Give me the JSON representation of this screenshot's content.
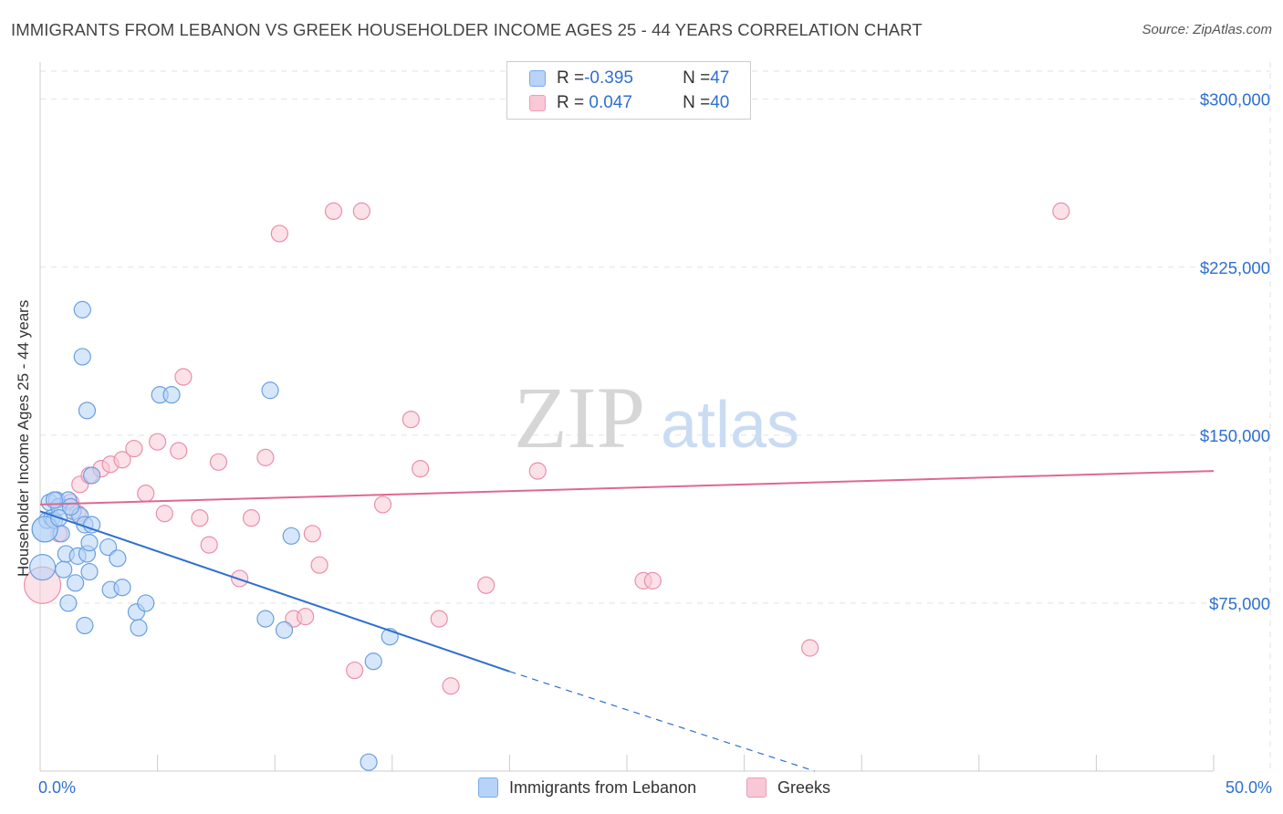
{
  "title": "IMMIGRANTS FROM LEBANON VS GREEK HOUSEHOLDER INCOME AGES 25 - 44 YEARS CORRELATION CHART",
  "source": "Source: ZipAtlas.com",
  "watermark": {
    "zip": "ZIP",
    "atlas": "atlas"
  },
  "legend": {
    "rows": [
      {
        "r_label": "R = ",
        "r_value": "-0.395",
        "n_label": "N = ",
        "n_value": "47"
      },
      {
        "r_label": "R = ",
        "r_value": " 0.047",
        "n_label": "N = ",
        "n_value": "40"
      }
    ]
  },
  "x_min_label": "0.0%",
  "x_max_label": "50.0%",
  "colors": {
    "blue": "#6a9fe0",
    "blue_fill": "#b7d3f7",
    "pink": "#ea8fab",
    "pink_fill": "#f8c8d6",
    "blue_line": "#2f6fcf",
    "pink_line": "#e06890",
    "axis_text": "#2f6fcf"
  },
  "chart_data": {
    "type": "scatter",
    "title": "IMMIGRANTS FROM LEBANON VS GREEK HOUSEHOLDER INCOME AGES 25 - 44 YEARS CORRELATION CHART",
    "xlabel": "",
    "ylabel": "Householder Income Ages 25 - 44 years",
    "xlim": [
      0,
      50
    ],
    "ylim": [
      0,
      312500
    ],
    "y_ticks": [
      75000,
      150000,
      225000,
      300000
    ],
    "y_tick_labels": [
      "$75,000",
      "$150,000",
      "$225,000",
      "$300,000"
    ],
    "grid": true,
    "legend_position": "bottom",
    "series": [
      {
        "name": "Immigrants from Lebanon",
        "R": -0.395,
        "N": 47,
        "trend": {
          "x0": 0,
          "y0": 116000,
          "x1": 20,
          "y1": 44500,
          "dash_to_x": 33,
          "dash_to_y": 0
        },
        "points": [
          [
            0.2,
            108000
          ],
          [
            0.3,
            112000
          ],
          [
            0.4,
            120000
          ],
          [
            0.5,
            113000
          ],
          [
            0.6,
            112000
          ],
          [
            0.7,
            121000
          ],
          [
            0.8,
            118000
          ],
          [
            0.9,
            106000
          ],
          [
            1.0,
            90000
          ],
          [
            1.1,
            97000
          ],
          [
            1.2,
            121000
          ],
          [
            1.2,
            75000
          ],
          [
            1.4,
            116000
          ],
          [
            1.5,
            84000
          ],
          [
            1.6,
            96000
          ],
          [
            1.7,
            114000
          ],
          [
            1.8,
            206000
          ],
          [
            1.8,
            185000
          ],
          [
            1.9,
            110000
          ],
          [
            1.9,
            65000
          ],
          [
            2.0,
            97000
          ],
          [
            2.0,
            161000
          ],
          [
            2.1,
            89000
          ],
          [
            2.1,
            102000
          ],
          [
            2.2,
            132000
          ],
          [
            2.2,
            110000
          ],
          [
            2.9,
            100000
          ],
          [
            3.0,
            81000
          ],
          [
            3.3,
            95000
          ],
          [
            3.5,
            82000
          ],
          [
            4.1,
            71000
          ],
          [
            4.2,
            64000
          ],
          [
            4.5,
            75000
          ],
          [
            5.1,
            168000
          ],
          [
            5.6,
            168000
          ],
          [
            9.6,
            68000
          ],
          [
            9.8,
            170000
          ],
          [
            10.4,
            63000
          ],
          [
            10.7,
            105000
          ],
          [
            14.9,
            60000
          ],
          [
            14.0,
            4000
          ],
          [
            14.2,
            49000
          ],
          [
            0.1,
            91000
          ],
          [
            0.2,
            108000
          ],
          [
            0.6,
            121000
          ],
          [
            0.8,
            113000
          ],
          [
            1.3,
            118000
          ]
        ]
      },
      {
        "name": "Greeks",
        "R": 0.047,
        "N": 40,
        "trend": {
          "x0": 0,
          "y0": 119000,
          "x1": 50,
          "y1": 134000
        },
        "points": [
          [
            0.1,
            83000
          ],
          [
            0.8,
            106000
          ],
          [
            1.3,
            120000
          ],
          [
            1.6,
            115000
          ],
          [
            1.7,
            128000
          ],
          [
            2.1,
            132000
          ],
          [
            2.6,
            135000
          ],
          [
            3.0,
            137000
          ],
          [
            3.5,
            139000
          ],
          [
            4.0,
            144000
          ],
          [
            4.5,
            124000
          ],
          [
            5.0,
            147000
          ],
          [
            5.3,
            115000
          ],
          [
            5.9,
            143000
          ],
          [
            6.1,
            176000
          ],
          [
            6.8,
            113000
          ],
          [
            7.2,
            101000
          ],
          [
            7.6,
            138000
          ],
          [
            8.5,
            86000
          ],
          [
            9.0,
            113000
          ],
          [
            9.6,
            140000
          ],
          [
            10.2,
            240000
          ],
          [
            10.8,
            68000
          ],
          [
            11.3,
            69000
          ],
          [
            11.6,
            106000
          ],
          [
            11.9,
            92000
          ],
          [
            12.5,
            250000
          ],
          [
            13.4,
            45000
          ],
          [
            13.7,
            250000
          ],
          [
            14.6,
            119000
          ],
          [
            15.8,
            157000
          ],
          [
            16.2,
            135000
          ],
          [
            17.0,
            68000
          ],
          [
            17.5,
            38000
          ],
          [
            19.0,
            83000
          ],
          [
            21.2,
            134000
          ],
          [
            25.7,
            85000
          ],
          [
            26.1,
            85000
          ],
          [
            32.8,
            55000
          ],
          [
            43.5,
            250000
          ]
        ]
      }
    ]
  }
}
